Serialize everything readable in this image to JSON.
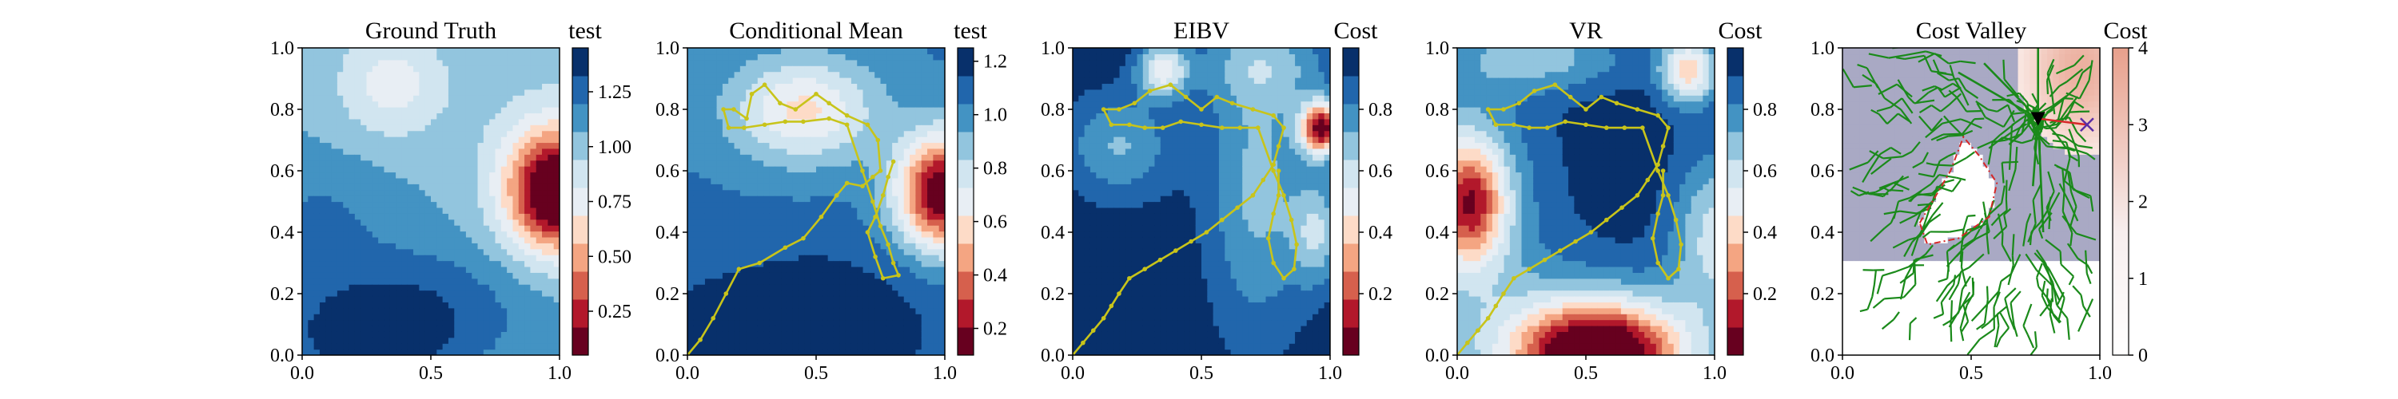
{
  "chart_data": [
    {
      "type": "heatmap",
      "title": "Ground Truth",
      "xlim": [
        0,
        1
      ],
      "ylim": [
        0,
        1
      ],
      "xticks": [
        "0.0",
        "0.5",
        "1.0"
      ],
      "yticks": [
        "0.0",
        "0.2",
        "0.4",
        "0.6",
        "0.8",
        "1.0"
      ],
      "colorbar": {
        "label": "test",
        "cmap": "RdBu",
        "range": [
          0.05,
          1.45
        ],
        "ticks": [
          0.25,
          0.5,
          0.75,
          1.0,
          1.25
        ],
        "tick_labels": [
          "0.25",
          "0.50",
          "0.75",
          "1.00",
          "1.25"
        ]
      },
      "field": {
        "base": 1.05,
        "bumps": [
          {
            "x": 1.0,
            "y": 0.53,
            "sx": 0.13,
            "sy": 0.13,
            "a": -1.0
          },
          {
            "x": 0.95,
            "y": 0.58,
            "sx": 0.18,
            "sy": 0.2,
            "a": -0.25
          },
          {
            "x": 0.35,
            "y": 0.88,
            "sx": 0.15,
            "sy": 0.12,
            "a": -0.3
          },
          {
            "x": 0.45,
            "y": 0.15,
            "sx": 0.35,
            "sy": 0.16,
            "a": 0.25
          },
          {
            "x": 0.25,
            "y": 0.05,
            "sx": 0.2,
            "sy": 0.1,
            "a": 0.3
          },
          {
            "x": 0.05,
            "y": 0.45,
            "sx": 0.2,
            "sy": 0.15,
            "a": 0.15
          }
        ]
      }
    },
    {
      "type": "heatmap",
      "title": "Conditional Mean",
      "xlim": [
        0,
        1
      ],
      "ylim": [
        0,
        1
      ],
      "xticks": [
        "0.0",
        "0.5",
        "1.0"
      ],
      "yticks": [
        "0.0",
        "0.2",
        "0.4",
        "0.6",
        "0.8",
        "1.0"
      ],
      "colorbar": {
        "label": "test",
        "cmap": "RdBu",
        "range": [
          0.1,
          1.25
        ],
        "ticks": [
          0.2,
          0.4,
          0.6,
          0.8,
          1.0,
          1.2
        ],
        "tick_labels": [
          "0.2",
          "0.4",
          "0.6",
          "0.8",
          "1.0",
          "1.2"
        ]
      },
      "field": {
        "base": 1.05,
        "bumps": [
          {
            "x": 1.0,
            "y": 0.53,
            "sx": 0.13,
            "sy": 0.13,
            "a": -1.0
          },
          {
            "x": 0.45,
            "y": 0.8,
            "sx": 0.2,
            "sy": 0.12,
            "a": -0.45
          },
          {
            "x": 0.5,
            "y": 0.1,
            "sx": 0.35,
            "sy": 0.18,
            "a": 0.2
          },
          {
            "x": 0.1,
            "y": 0.05,
            "sx": 0.2,
            "sy": 0.1,
            "a": 0.15
          }
        ]
      },
      "path": [
        [
          0.0,
          0.0
        ],
        [
          0.05,
          0.05
        ],
        [
          0.1,
          0.12
        ],
        [
          0.15,
          0.2
        ],
        [
          0.2,
          0.28
        ],
        [
          0.28,
          0.3
        ],
        [
          0.38,
          0.35
        ],
        [
          0.45,
          0.38
        ],
        [
          0.52,
          0.45
        ],
        [
          0.58,
          0.52
        ],
        [
          0.62,
          0.56
        ],
        [
          0.68,
          0.55
        ],
        [
          0.72,
          0.58
        ],
        [
          0.75,
          0.6
        ],
        [
          0.74,
          0.7
        ],
        [
          0.7,
          0.75
        ],
        [
          0.62,
          0.78
        ],
        [
          0.55,
          0.82
        ],
        [
          0.5,
          0.85
        ],
        [
          0.42,
          0.8
        ],
        [
          0.36,
          0.82
        ],
        [
          0.3,
          0.88
        ],
        [
          0.25,
          0.85
        ],
        [
          0.23,
          0.77
        ],
        [
          0.18,
          0.8
        ],
        [
          0.14,
          0.8
        ],
        [
          0.16,
          0.74
        ],
        [
          0.22,
          0.74
        ],
        [
          0.3,
          0.75
        ],
        [
          0.38,
          0.76
        ],
        [
          0.45,
          0.76
        ],
        [
          0.55,
          0.77
        ],
        [
          0.62,
          0.75
        ],
        [
          0.68,
          0.6
        ],
        [
          0.72,
          0.5
        ],
        [
          0.75,
          0.42
        ],
        [
          0.78,
          0.36
        ],
        [
          0.8,
          0.3
        ],
        [
          0.82,
          0.26
        ],
        [
          0.76,
          0.25
        ],
        [
          0.73,
          0.32
        ],
        [
          0.7,
          0.4
        ],
        [
          0.73,
          0.45
        ],
        [
          0.76,
          0.52
        ],
        [
          0.78,
          0.58
        ],
        [
          0.8,
          0.63
        ]
      ]
    },
    {
      "type": "heatmap",
      "title": "EIBV",
      "xlim": [
        0,
        1
      ],
      "ylim": [
        0,
        1
      ],
      "xticks": [
        "0.0",
        "0.5",
        "1.0"
      ],
      "yticks": [
        "0.0",
        "0.2",
        "0.4",
        "0.6",
        "0.8",
        "1.0"
      ],
      "colorbar": {
        "label": "Cost",
        "cmap": "RdBu",
        "range": [
          0.0,
          1.0
        ],
        "ticks": [
          0.2,
          0.4,
          0.6,
          0.8
        ],
        "tick_labels": [
          "0.2",
          "0.4",
          "0.6",
          "0.8"
        ]
      },
      "field": {
        "base": 0.97,
        "bumps": [
          {
            "x": 0.97,
            "y": 0.74,
            "sx": 0.06,
            "sy": 0.06,
            "a": -0.9
          },
          {
            "x": 0.35,
            "y": 0.93,
            "sx": 0.07,
            "sy": 0.06,
            "a": -0.45
          },
          {
            "x": 0.95,
            "y": 0.4,
            "sx": 0.07,
            "sy": 0.12,
            "a": -0.3
          },
          {
            "x": 0.18,
            "y": 0.68,
            "sx": 0.15,
            "sy": 0.12,
            "a": -0.25
          },
          {
            "x": 0.72,
            "y": 0.55,
            "sx": 0.14,
            "sy": 0.35,
            "a": -0.27
          },
          {
            "x": 0.75,
            "y": 0.95,
            "sx": 0.2,
            "sy": 0.1,
            "a": -0.2
          }
        ]
      },
      "path": [
        [
          0.0,
          0.0
        ],
        [
          0.04,
          0.04
        ],
        [
          0.08,
          0.08
        ],
        [
          0.12,
          0.12
        ],
        [
          0.15,
          0.16
        ],
        [
          0.18,
          0.2
        ],
        [
          0.22,
          0.25
        ],
        [
          0.28,
          0.28
        ],
        [
          0.34,
          0.31
        ],
        [
          0.4,
          0.34
        ],
        [
          0.46,
          0.37
        ],
        [
          0.52,
          0.4
        ],
        [
          0.58,
          0.44
        ],
        [
          0.64,
          0.48
        ],
        [
          0.7,
          0.52
        ],
        [
          0.74,
          0.57
        ],
        [
          0.78,
          0.62
        ],
        [
          0.8,
          0.68
        ],
        [
          0.82,
          0.74
        ],
        [
          0.78,
          0.78
        ],
        [
          0.7,
          0.8
        ],
        [
          0.62,
          0.82
        ],
        [
          0.56,
          0.84
        ],
        [
          0.5,
          0.8
        ],
        [
          0.44,
          0.84
        ],
        [
          0.38,
          0.88
        ],
        [
          0.3,
          0.86
        ],
        [
          0.24,
          0.82
        ],
        [
          0.18,
          0.8
        ],
        [
          0.12,
          0.8
        ],
        [
          0.15,
          0.75
        ],
        [
          0.22,
          0.75
        ],
        [
          0.28,
          0.74
        ],
        [
          0.35,
          0.74
        ],
        [
          0.42,
          0.76
        ],
        [
          0.5,
          0.75
        ],
        [
          0.58,
          0.74
        ],
        [
          0.65,
          0.74
        ],
        [
          0.72,
          0.74
        ],
        [
          0.78,
          0.6
        ],
        [
          0.82,
          0.52
        ],
        [
          0.85,
          0.44
        ],
        [
          0.87,
          0.36
        ],
        [
          0.86,
          0.28
        ],
        [
          0.82,
          0.25
        ],
        [
          0.78,
          0.3
        ],
        [
          0.76,
          0.38
        ],
        [
          0.78,
          0.46
        ],
        [
          0.8,
          0.52
        ],
        [
          0.8,
          0.6
        ]
      ]
    },
    {
      "type": "heatmap",
      "title": "VR",
      "xlim": [
        0,
        1
      ],
      "ylim": [
        0,
        1
      ],
      "xticks": [
        "0.0",
        "0.5",
        "1.0"
      ],
      "yticks": [
        "0.0",
        "0.2",
        "0.4",
        "0.6",
        "0.8",
        "1.0"
      ],
      "colorbar": {
        "label": "Cost",
        "cmap": "RdBu",
        "range": [
          0.0,
          1.0
        ],
        "ticks": [
          0.2,
          0.4,
          0.6,
          0.8
        ],
        "tick_labels": [
          "0.2",
          "0.4",
          "0.6",
          "0.8"
        ]
      },
      "field": {
        "base": 0.97,
        "bumps": [
          {
            "x": 0.55,
            "y": 0.0,
            "sx": 0.22,
            "sy": 0.12,
            "a": -0.95
          },
          {
            "x": 0.05,
            "y": 0.5,
            "sx": 0.1,
            "sy": 0.14,
            "a": -0.65
          },
          {
            "x": 0.9,
            "y": 0.93,
            "sx": 0.08,
            "sy": 0.08,
            "a": -0.55
          },
          {
            "x": 0.0,
            "y": 0.5,
            "sx": 0.25,
            "sy": 0.35,
            "a": -0.25
          },
          {
            "x": 0.5,
            "y": 0.0,
            "sx": 0.4,
            "sy": 0.2,
            "a": -0.25
          },
          {
            "x": 1.0,
            "y": 0.4,
            "sx": 0.12,
            "sy": 0.2,
            "a": -0.35
          },
          {
            "x": 0.35,
            "y": 0.97,
            "sx": 0.25,
            "sy": 0.08,
            "a": -0.25
          }
        ]
      },
      "path": [
        [
          0.0,
          0.0
        ],
        [
          0.04,
          0.04
        ],
        [
          0.08,
          0.08
        ],
        [
          0.12,
          0.12
        ],
        [
          0.15,
          0.16
        ],
        [
          0.18,
          0.2
        ],
        [
          0.22,
          0.25
        ],
        [
          0.28,
          0.28
        ],
        [
          0.34,
          0.31
        ],
        [
          0.4,
          0.34
        ],
        [
          0.46,
          0.37
        ],
        [
          0.52,
          0.4
        ],
        [
          0.58,
          0.44
        ],
        [
          0.64,
          0.48
        ],
        [
          0.7,
          0.52
        ],
        [
          0.74,
          0.57
        ],
        [
          0.78,
          0.62
        ],
        [
          0.8,
          0.68
        ],
        [
          0.82,
          0.74
        ],
        [
          0.78,
          0.78
        ],
        [
          0.7,
          0.8
        ],
        [
          0.62,
          0.82
        ],
        [
          0.56,
          0.84
        ],
        [
          0.5,
          0.8
        ],
        [
          0.44,
          0.84
        ],
        [
          0.38,
          0.88
        ],
        [
          0.3,
          0.86
        ],
        [
          0.24,
          0.82
        ],
        [
          0.18,
          0.8
        ],
        [
          0.12,
          0.8
        ],
        [
          0.15,
          0.75
        ],
        [
          0.22,
          0.75
        ],
        [
          0.28,
          0.74
        ],
        [
          0.35,
          0.74
        ],
        [
          0.42,
          0.76
        ],
        [
          0.5,
          0.75
        ],
        [
          0.58,
          0.74
        ],
        [
          0.65,
          0.74
        ],
        [
          0.72,
          0.74
        ],
        [
          0.78,
          0.6
        ],
        [
          0.82,
          0.52
        ],
        [
          0.85,
          0.44
        ],
        [
          0.87,
          0.36
        ],
        [
          0.86,
          0.28
        ],
        [
          0.82,
          0.25
        ],
        [
          0.78,
          0.3
        ],
        [
          0.76,
          0.38
        ],
        [
          0.78,
          0.46
        ],
        [
          0.8,
          0.52
        ],
        [
          0.8,
          0.6
        ]
      ]
    },
    {
      "type": "heatmap",
      "title": "Cost Valley",
      "xlim": [
        0,
        1
      ],
      "ylim": [
        0,
        1
      ],
      "xticks": [
        "0.0",
        "0.5",
        "1.0"
      ],
      "yticks": [
        "0.0",
        "0.2",
        "0.4",
        "0.6",
        "0.8",
        "1.0"
      ],
      "colorbar": {
        "label": "Cost",
        "cmap": "white-to-rose",
        "range": [
          0,
          4
        ],
        "ticks": [
          0,
          1,
          2,
          3,
          4
        ],
        "tick_labels": [
          "0",
          "1",
          "2",
          "3",
          "4"
        ]
      },
      "field": {
        "base": 3.0,
        "bumps": [
          {
            "x": 0.93,
            "y": 0.93,
            "sx": 0.16,
            "sy": 0.18,
            "a": 1.0
          }
        ],
        "low_region_below_y": 0.3,
        "obstacle_polygon": [
          [
            0.3,
            0.43
          ],
          [
            0.42,
            0.6
          ],
          [
            0.47,
            0.71
          ],
          [
            0.53,
            0.65
          ],
          [
            0.6,
            0.56
          ],
          [
            0.57,
            0.45
          ],
          [
            0.45,
            0.38
          ],
          [
            0.33,
            0.36
          ]
        ]
      },
      "rrt_tree": "green branching edges",
      "target_marker": {
        "x": 0.95,
        "y": 0.75,
        "symbol": "x",
        "color": "#5a2ea6"
      },
      "current_marker": {
        "x": 0.76,
        "y": 0.77,
        "symbol": "triangle-down",
        "color": "#000000"
      },
      "planned_path_color": "#d62728",
      "obstacle_outline_color": "#d62728",
      "tree_color": "#1a8a1a"
    }
  ]
}
